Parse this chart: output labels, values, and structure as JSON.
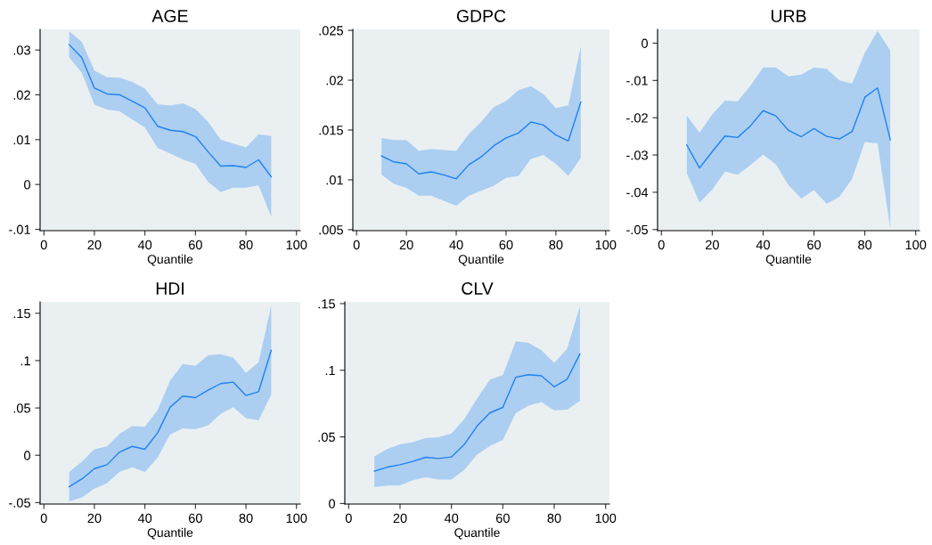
{
  "chart_data": [
    {
      "type": "line",
      "title": "AGE",
      "xlabel": "Quantile",
      "x": [
        10,
        15,
        20,
        25,
        30,
        35,
        40,
        45,
        50,
        55,
        60,
        65,
        70,
        75,
        80,
        85,
        90
      ],
      "xlim": [
        -1.5,
        101.5
      ],
      "xticks": [
        0,
        20,
        40,
        60,
        80,
        100
      ],
      "ylim": [
        -0.0103,
        0.0346
      ],
      "yticks": [
        {
          "value": -0.01,
          "label": "-.01"
        },
        0,
        {
          "value": 0.01,
          "label": ".01"
        },
        {
          "value": 0.02,
          "label": ".02"
        },
        {
          "value": 0.03,
          "label": ".03"
        }
      ],
      "grid": false,
      "legend": false,
      "series": [
        {
          "color": "#1e82f0",
          "values": [
            0.0312,
            0.0283,
            0.0215,
            0.0202,
            0.02,
            0.0186,
            0.0171,
            0.013,
            0.0121,
            0.0118,
            0.0107,
            0.0073,
            0.0041,
            0.0042,
            0.0038,
            0.0055,
            0.0017
          ],
          "upper": [
            0.0342,
            0.0318,
            0.0254,
            0.0239,
            0.0238,
            0.0229,
            0.0214,
            0.0179,
            0.0176,
            0.0181,
            0.0168,
            0.014,
            0.01,
            0.0091,
            0.0083,
            0.0112,
            0.0108
          ],
          "lower": [
            0.0284,
            0.0249,
            0.0178,
            0.0167,
            0.0163,
            0.0145,
            0.0127,
            0.0082,
            0.0069,
            0.0056,
            0.0046,
            0.0006,
            -0.0017,
            -0.0007,
            -0.0007,
            -0.0002,
            -0.0072
          ]
        }
      ]
    },
    {
      "type": "line",
      "title": "GDPC",
      "xlabel": "Quantile",
      "x": [
        10,
        15,
        20,
        25,
        30,
        35,
        40,
        45,
        50,
        55,
        60,
        65,
        70,
        75,
        80,
        85,
        90
      ],
      "xlim": [
        -1.5,
        101.5
      ],
      "xticks": [
        0,
        20,
        40,
        60,
        80,
        100
      ],
      "ylim": [
        0.0049,
        0.0251
      ],
      "yticks": [
        {
          "value": 0.005,
          "label": ".005"
        },
        {
          "value": 0.01,
          "label": ".01"
        },
        {
          "value": 0.015,
          "label": ".015"
        },
        {
          "value": 0.02,
          "label": ".02"
        },
        {
          "value": 0.025,
          "label": ".025"
        }
      ],
      "grid": false,
      "legend": false,
      "series": [
        {
          "color": "#1e82f0",
          "values": [
            0.0124,
            0.0118,
            0.0116,
            0.0106,
            0.0108,
            0.0105,
            0.0101,
            0.0115,
            0.0123,
            0.0134,
            0.0142,
            0.0147,
            0.0158,
            0.0155,
            0.0145,
            0.0139,
            0.0178
          ],
          "upper": [
            0.0142,
            0.014,
            0.014,
            0.0129,
            0.0131,
            0.013,
            0.0129,
            0.0146,
            0.0158,
            0.0173,
            0.0179,
            0.019,
            0.0194,
            0.0186,
            0.0172,
            0.0175,
            0.0234
          ],
          "lower": [
            0.0105,
            0.0096,
            0.0092,
            0.0084,
            0.0084,
            0.0079,
            0.0074,
            0.0084,
            0.0089,
            0.0094,
            0.0102,
            0.0104,
            0.0121,
            0.0125,
            0.0116,
            0.0104,
            0.0122
          ]
        }
      ]
    },
    {
      "type": "line",
      "title": "URB",
      "xlabel": "Quantile",
      "x": [
        10,
        15,
        20,
        25,
        30,
        35,
        40,
        45,
        50,
        55,
        60,
        65,
        70,
        75,
        80,
        85,
        90
      ],
      "xlim": [
        -1.5,
        101.5
      ],
      "xticks": [
        0,
        20,
        40,
        60,
        80,
        100
      ],
      "ylim": [
        -0.0503,
        0.0037
      ],
      "yticks": [
        {
          "value": -0.05,
          "label": "-.05"
        },
        {
          "value": -0.04,
          "label": "-.04"
        },
        {
          "value": -0.03,
          "label": "-.03"
        },
        {
          "value": -0.02,
          "label": "-.02"
        },
        {
          "value": -0.01,
          "label": "-.01"
        },
        0
      ],
      "grid": false,
      "legend": false,
      "series": [
        {
          "color": "#1e82f0",
          "values": [
            -0.0273,
            -0.0335,
            -0.0291,
            -0.0249,
            -0.0253,
            -0.0222,
            -0.0181,
            -0.0195,
            -0.0234,
            -0.0251,
            -0.0229,
            -0.025,
            -0.0257,
            -0.0237,
            -0.0145,
            -0.012,
            -0.0259
          ],
          "upper": [
            -0.0194,
            -0.024,
            -0.0191,
            -0.0154,
            -0.0156,
            -0.0114,
            -0.0065,
            -0.0065,
            -0.0089,
            -0.0084,
            -0.0065,
            -0.0069,
            -0.01,
            -0.0108,
            -0.0026,
            0.0033,
            -0.002
          ],
          "lower": [
            -0.0349,
            -0.0428,
            -0.0393,
            -0.0345,
            -0.0353,
            -0.0327,
            -0.0299,
            -0.0325,
            -0.0381,
            -0.0417,
            -0.0394,
            -0.0431,
            -0.0412,
            -0.0364,
            -0.0265,
            -0.0269,
            -0.0497
          ]
        }
      ]
    },
    {
      "type": "line",
      "title": "HDI",
      "xlabel": "Quantile",
      "x": [
        10,
        15,
        20,
        25,
        30,
        35,
        40,
        45,
        50,
        55,
        60,
        65,
        70,
        75,
        80,
        85,
        90
      ],
      "xlim": [
        -1.5,
        101.5
      ],
      "xticks": [
        0,
        20,
        40,
        60,
        80,
        100
      ],
      "ylim": [
        -0.0515,
        0.162
      ],
      "yticks": [
        {
          "value": -0.05,
          "label": "-.05"
        },
        0,
        {
          "value": 0.05,
          "label": ".05"
        },
        {
          "value": 0.1,
          "label": ".1"
        },
        {
          "value": 0.15,
          "label": ".15"
        }
      ],
      "grid": false,
      "legend": false,
      "series": [
        {
          "color": "#1e82f0",
          "values": [
            -0.0333,
            -0.0251,
            -0.0141,
            -0.01,
            0.0035,
            0.0094,
            0.0063,
            0.0236,
            0.0509,
            0.0625,
            0.0609,
            0.0688,
            0.0757,
            0.0772,
            0.0631,
            0.0672,
            0.1108
          ],
          "upper": [
            -0.0176,
            -0.0069,
            0.0063,
            0.0094,
            0.0229,
            0.0308,
            0.0301,
            0.0477,
            0.0791,
            0.0964,
            0.0945,
            0.1055,
            0.1067,
            0.1033,
            0.0869,
            0.0982,
            0.1579
          ],
          "lower": [
            -0.0487,
            -0.0446,
            -0.0352,
            -0.0295,
            -0.0173,
            -0.0126,
            -0.0176,
            -0.0025,
            0.022,
            0.0283,
            0.0276,
            0.0314,
            0.0437,
            0.0508,
            0.0392,
            0.037,
            0.0643
          ]
        }
      ]
    },
    {
      "type": "line",
      "title": "CLV",
      "xlabel": "Quantile",
      "x": [
        10,
        15,
        20,
        25,
        30,
        35,
        40,
        45,
        50,
        55,
        60,
        65,
        70,
        75,
        80,
        85,
        90
      ],
      "xlim": [
        -1.5,
        101.5
      ],
      "xticks": [
        0,
        20,
        40,
        60,
        80,
        100
      ],
      "ylim": [
        -0.0004,
        0.1513
      ],
      "yticks": [
        0,
        {
          "value": 0.05,
          "label": ".05"
        },
        {
          "value": 0.1,
          "label": ".1"
        },
        {
          "value": 0.15,
          "label": ".15"
        }
      ],
      "grid": false,
      "legend": false,
      "series": [
        {
          "color": "#1e82f0",
          "values": [
            0.0242,
            0.0273,
            0.0291,
            0.0316,
            0.0347,
            0.0338,
            0.0349,
            0.0443,
            0.0582,
            0.0681,
            0.0721,
            0.0947,
            0.0967,
            0.0958,
            0.0876,
            0.0932,
            0.1122
          ],
          "upper": [
            0.0354,
            0.0408,
            0.0443,
            0.0461,
            0.0493,
            0.0497,
            0.0526,
            0.0634,
            0.0788,
            0.093,
            0.0963,
            0.1218,
            0.1205,
            0.1151,
            0.1055,
            0.116,
            0.148
          ],
          "lower": [
            0.0123,
            0.0134,
            0.0137,
            0.0175,
            0.0197,
            0.0179,
            0.0179,
            0.0253,
            0.0367,
            0.0432,
            0.0477,
            0.0678,
            0.0734,
            0.0761,
            0.0699,
            0.0705,
            0.077
          ]
        }
      ]
    }
  ]
}
